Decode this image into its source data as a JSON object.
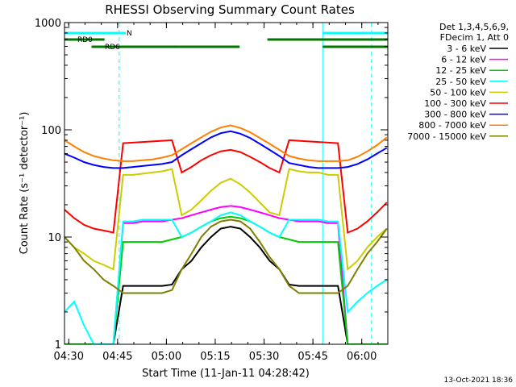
{
  "chart_data": {
    "type": "line",
    "title": "RHESSI Observing Summary Count Rates",
    "xlabel": "Start Time (11-Jan-11 04:28:42)",
    "ylabel": "Count Rate (s⁻¹ detector⁻¹)",
    "xlim": [
      "04:28:42",
      "06:08:00"
    ],
    "ylim": [
      1,
      1000
    ],
    "yscale": "log",
    "x_ticks": [
      "04:30",
      "04:45",
      "05:00",
      "05:15",
      "05:30",
      "05:45",
      "06:00"
    ],
    "y_ticks": [
      "1",
      "10",
      "100",
      "1000"
    ],
    "legend_header": [
      "Det 1,3,4,5,6,9,",
      "FDecim 1, Att 0"
    ],
    "legend_position": "right",
    "timestamp": "13-Oct-2021 18:36",
    "flags": {
      "n_label": "N",
      "rd0_label": "RD0",
      "rd6_label": "RD6",
      "n_intervals": [
        [
          "04:28:42",
          "04:47:30"
        ],
        [
          "05:48:00",
          "06:08:00"
        ]
      ],
      "rd0_intervals": [
        [
          "04:28:42",
          "04:41:00"
        ],
        [
          "05:31:00",
          "06:08:00"
        ]
      ],
      "rd6_intervals": [
        [
          "04:37:00",
          "05:04:00"
        ],
        [
          "05:04:00",
          "05:22:30"
        ],
        [
          "05:48:00",
          "06:08:00"
        ]
      ],
      "vertical_lines": [
        {
          "time": "04:45:30",
          "style": "dashed"
        },
        {
          "time": "05:48:00",
          "style": "solid"
        },
        {
          "time": "06:03:00",
          "style": "dashed"
        }
      ],
      "color": "#00ffff",
      "rd_color": "#007700"
    },
    "x_minutes": [
      0,
      3,
      6,
      9,
      12,
      15,
      18,
      21,
      24,
      27,
      30,
      33,
      36,
      39,
      42,
      45,
      48,
      51,
      54,
      57,
      60,
      63,
      66,
      69,
      72,
      75,
      78,
      81,
      84,
      87,
      90,
      93,
      96,
      99
    ],
    "series": [
      {
        "name": "3 - 6 keV",
        "color": "#000000",
        "values": [
          1.0,
          1.0,
          1.0,
          1.0,
          1.0,
          1.0,
          3.5,
          3.5,
          3.5,
          3.5,
          3.5,
          3.6,
          5.0,
          6.0,
          8.0,
          10.0,
          12.0,
          12.5,
          12.0,
          10.0,
          8.0,
          6.0,
          5.0,
          3.6,
          3.5,
          3.5,
          3.5,
          3.5,
          3.5,
          1.0,
          1.0,
          1.0,
          1.0,
          1.0
        ]
      },
      {
        "name": "6 - 12 keV",
        "color": "#ff00ff",
        "values": [
          1.0,
          1.0,
          1.0,
          1.0,
          1.0,
          1.0,
          13.5,
          13.5,
          14.0,
          14.0,
          14.0,
          14.5,
          15.0,
          16.0,
          17.0,
          18.0,
          19.0,
          19.5,
          19.0,
          18.0,
          17.0,
          16.0,
          15.0,
          14.5,
          14.0,
          14.0,
          14.0,
          13.5,
          13.5,
          1.0,
          1.0,
          1.0,
          1.0,
          1.0
        ]
      },
      {
        "name": "12 - 25 keV",
        "color": "#00cc00",
        "values": [
          1.0,
          1.0,
          1.0,
          1.0,
          1.0,
          1.0,
          9.0,
          9.0,
          9.0,
          9.0,
          9.0,
          9.5,
          10.0,
          11.0,
          12.5,
          14.0,
          15.0,
          15.5,
          15.0,
          14.0,
          12.5,
          11.0,
          10.0,
          9.5,
          9.0,
          9.0,
          9.0,
          9.0,
          9.0,
          1.0,
          1.0,
          1.0,
          1.0,
          1.0
        ]
      },
      {
        "name": "25 - 50 keV",
        "color": "#00ffff",
        "values": [
          2.0,
          2.5,
          1.5,
          1.0,
          1.0,
          1.0,
          14.0,
          14.0,
          14.5,
          14.5,
          14.5,
          14.5,
          10.0,
          11.0,
          12.5,
          14.0,
          16.0,
          17.0,
          16.0,
          14.0,
          12.5,
          11.0,
          10.0,
          14.5,
          14.5,
          14.5,
          14.5,
          14.0,
          14.0,
          2.0,
          2.5,
          3.0,
          3.5,
          4.0
        ]
      },
      {
        "name": "50 - 100 keV",
        "color": "#cccc00",
        "values": [
          10.0,
          8.0,
          7.0,
          6.0,
          5.5,
          5.0,
          38.0,
          38.0,
          39.0,
          40.0,
          41.0,
          43.0,
          16.0,
          18.0,
          22.0,
          27.0,
          32.0,
          35.0,
          31.0,
          26.0,
          21.0,
          17.0,
          16.0,
          43.0,
          41.0,
          40.0,
          40.0,
          38.0,
          38.0,
          5.0,
          6.0,
          8.0,
          10.0,
          12.0
        ]
      },
      {
        "name": "100 - 300 keV",
        "color": "#ff0000",
        "values": [
          18.0,
          15.0,
          13.0,
          12.0,
          11.5,
          11.0,
          75.0,
          76.0,
          77.0,
          78.0,
          79.0,
          80.0,
          40.0,
          45.0,
          52.0,
          58.0,
          63.0,
          65.0,
          62.0,
          56.0,
          50.0,
          44.0,
          40.0,
          80.0,
          79.0,
          78.0,
          77.0,
          76.0,
          75.0,
          11.0,
          12.0,
          14.0,
          17.0,
          21.0
        ]
      },
      {
        "name": "300 - 800 keV",
        "color": "#0000ff",
        "values": [
          60.0,
          55.0,
          50.0,
          47.0,
          45.0,
          44.0,
          44.0,
          45.0,
          46.0,
          47.0,
          48.0,
          50.0,
          58.0,
          66.0,
          75.0,
          85.0,
          93.0,
          97.0,
          92.0,
          84.0,
          74.0,
          65.0,
          57.0,
          49.0,
          47.0,
          45.0,
          44.0,
          44.0,
          44.0,
          45.0,
          48.0,
          53.0,
          60.0,
          68.0
        ]
      },
      {
        "name": "800 - 7000 keV",
        "color": "#ff7f00",
        "values": [
          80.0,
          70.0,
          62.0,
          57.0,
          54.0,
          52.0,
          51.0,
          51.0,
          52.0,
          53.0,
          55.0,
          58.0,
          66.0,
          75.0,
          85.0,
          96.0,
          105.0,
          110.0,
          104.0,
          95.0,
          84.0,
          74.0,
          65.0,
          57.0,
          54.0,
          52.0,
          51.0,
          51.0,
          51.0,
          52.0,
          56.0,
          63.0,
          72.0,
          85.0
        ]
      },
      {
        "name": "7000 - 15000 keV",
        "color": "#7f7f00",
        "values": [
          10.0,
          8.0,
          6.0,
          5.0,
          4.0,
          3.5,
          3.0,
          3.0,
          3.0,
          3.0,
          3.0,
          3.2,
          5.0,
          7.0,
          10.0,
          12.5,
          14.0,
          14.5,
          14.0,
          12.0,
          9.0,
          6.5,
          5.0,
          3.5,
          3.0,
          3.0,
          3.0,
          3.0,
          3.0,
          3.5,
          5.0,
          7.0,
          9.0,
          12.0
        ]
      }
    ]
  }
}
